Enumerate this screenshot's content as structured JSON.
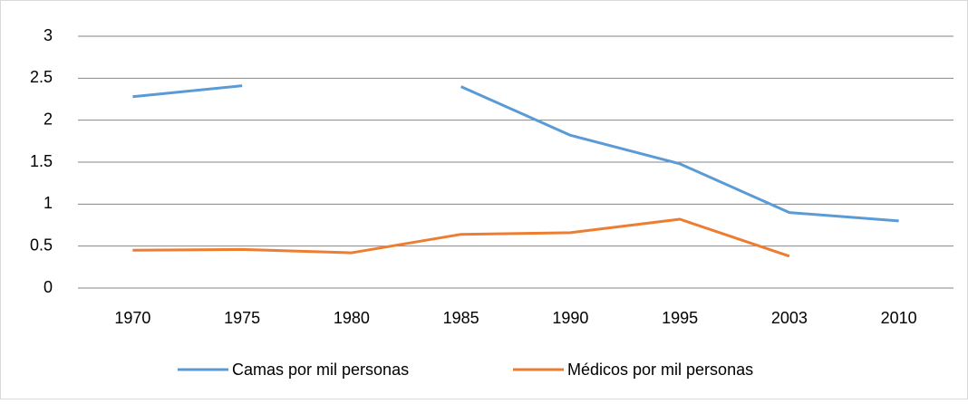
{
  "chart_data": {
    "type": "line",
    "categories": [
      "1970",
      "1975",
      "1980",
      "1985",
      "1990",
      "1995",
      "2003",
      "2010"
    ],
    "series": [
      {
        "name": "Camas por mil personas",
        "color": "#5b9bd5",
        "values": [
          2.28,
          2.41,
          null,
          2.4,
          1.82,
          1.48,
          0.9,
          0.8
        ]
      },
      {
        "name": "Médicos por mil personas",
        "color": "#ed7d31",
        "values": [
          0.45,
          0.46,
          0.42,
          0.64,
          0.66,
          0.82,
          0.38,
          null
        ]
      }
    ],
    "ylim": [
      0,
      3
    ],
    "yticks": [
      0,
      0.5,
      1,
      1.5,
      2,
      2.5,
      3
    ],
    "grid": true,
    "legend": "bottom"
  }
}
